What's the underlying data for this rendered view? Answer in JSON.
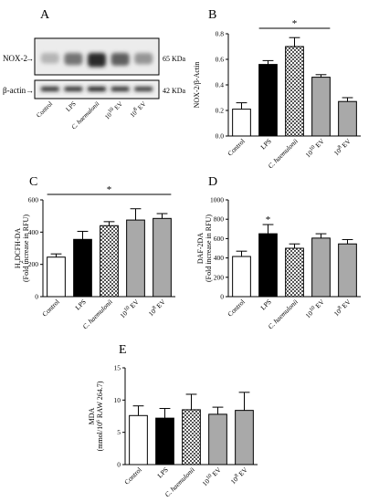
{
  "panel_letters": {
    "a": "A",
    "b": "B",
    "c": "C",
    "d": "D",
    "e": "E"
  },
  "blot": {
    "rows": [
      {
        "label": "NOX-2",
        "size": "65 KDa"
      },
      {
        "label": "β-actin",
        "size": "42 KDa"
      }
    ],
    "lanes": [
      "Control",
      "LPS",
      "C. haemulonii",
      "10^10 EV",
      "10^8 EV"
    ],
    "nox2_band_intensity": [
      0.25,
      0.55,
      0.9,
      0.65,
      0.4
    ],
    "actin_band_intensity": [
      0.9,
      0.9,
      0.95,
      0.9,
      0.85
    ]
  },
  "chart_data": [
    {
      "panel": "B",
      "type": "bar",
      "categories": [
        "Control",
        "LPS",
        "C. haemulonii",
        "10^10 EV",
        "10^8 EV"
      ],
      "values": [
        0.21,
        0.56,
        0.7,
        0.46,
        0.27
      ],
      "errors": [
        0.05,
        0.03,
        0.07,
        0.02,
        0.03
      ],
      "fills": [
        "white",
        "black",
        "checker",
        "gray",
        "gray"
      ],
      "ylabel": "NOX-2/β-Actin",
      "ylim": [
        0,
        0.8
      ],
      "yticks": [
        0.0,
        0.2,
        0.4,
        0.6,
        0.8
      ],
      "ytick_labels": [
        "0.0",
        "0.2",
        "0.4",
        "0.6",
        "0.8"
      ],
      "significance": {
        "label": "*",
        "from": 1,
        "to": 3
      }
    },
    {
      "panel": "C",
      "type": "bar",
      "categories": [
        "Control",
        "LPS",
        "C. haemulonii",
        "10^10 EV",
        "10^8 EV"
      ],
      "values": [
        245,
        355,
        440,
        475,
        485
      ],
      "errors": [
        20,
        50,
        25,
        70,
        30
      ],
      "fills": [
        "white",
        "black",
        "checker",
        "gray",
        "gray"
      ],
      "ylabel": "H2DCFH-DA",
      "ylabel2": "(Fold increase in RFU)",
      "ylim": [
        0,
        600
      ],
      "yticks": [
        0,
        200,
        400,
        600
      ],
      "ytick_labels": [
        "0",
        "200",
        "400",
        "600"
      ],
      "significance": {
        "label": "*",
        "from": 0,
        "to": 4
      }
    },
    {
      "panel": "D",
      "type": "bar",
      "categories": [
        "Control",
        "LPS",
        "C. haemulonii",
        "10^10 EV",
        "10^8 EV"
      ],
      "values": [
        415,
        650,
        500,
        605,
        545
      ],
      "errors": [
        55,
        95,
        45,
        45,
        45
      ],
      "fills": [
        "white",
        "black",
        "checker",
        "gray",
        "gray"
      ],
      "ylabel": "DAF-2DA",
      "ylabel2": "(Fold increase in RFU)",
      "ylim": [
        0,
        1000
      ],
      "yticks": [
        0,
        200,
        400,
        600,
        800,
        1000
      ],
      "ytick_labels": [
        "0",
        "200",
        "400",
        "600",
        "800",
        "1000"
      ],
      "significance": {
        "label": "*",
        "over": 1
      }
    },
    {
      "panel": "E",
      "type": "bar",
      "categories": [
        "Control",
        "LPS",
        "C. haemulonii",
        "10^10 EV",
        "10^8 EV"
      ],
      "values": [
        7.6,
        7.2,
        8.5,
        7.8,
        8.4
      ],
      "errors": [
        1.5,
        1.5,
        2.4,
        1.1,
        2.8
      ],
      "fills": [
        "white",
        "black",
        "checker",
        "gray",
        "gray"
      ],
      "ylabel": "MDA",
      "ylabel2": "(mmol/10^6 RAW 264.7)",
      "ylim": [
        0,
        15
      ],
      "yticks": [
        0,
        5,
        10,
        15
      ],
      "ytick_labels": [
        "0",
        "5",
        "10",
        "15"
      ]
    }
  ]
}
